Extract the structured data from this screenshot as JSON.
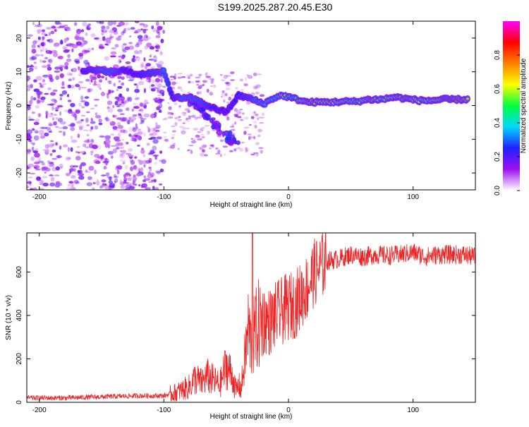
{
  "title": "S199.2025.287.20.45.E30",
  "chart_data": [
    {
      "type": "heatmap",
      "xlabel": "Height of straight line (km)",
      "ylabel": "Frequency (Hz)",
      "xlim": [
        -210,
        150
      ],
      "ylim": [
        -25,
        25
      ],
      "x_ticks": [
        -200,
        -100,
        0,
        100
      ],
      "y_ticks": [
        -20,
        -10,
        0,
        10,
        20
      ],
      "colorbar": {
        "label": "Normalized spectral amplitude",
        "range": [
          0,
          1
        ],
        "ticks": [
          0.0,
          0.2,
          0.4,
          0.6,
          0.8
        ],
        "tick_labels": [
          "0.0",
          "0.2",
          "0.4",
          "0.6",
          "0.8"
        ],
        "colors": [
          "#ffffff",
          "#a010f0",
          "#2020ff",
          "#00d8ff",
          "#00ff40",
          "#ffff00",
          "#ff8000",
          "#ff0000",
          "#ff00ff"
        ]
      },
      "ridge": [
        {
          "x": -165,
          "y": 10.5,
          "a": 0.25
        },
        {
          "x": -150,
          "y": 10.3,
          "a": 0.3
        },
        {
          "x": -140,
          "y": 10.0,
          "a": 0.3
        },
        {
          "x": -130,
          "y": 10.4,
          "a": 0.25
        },
        {
          "x": -122,
          "y": 9.2,
          "a": 0.25
        },
        {
          "x": -100,
          "y": 10.0,
          "a": 0.3
        },
        {
          "x": -93,
          "y": 2.5,
          "a": 0.25
        },
        {
          "x": -85,
          "y": 2.2,
          "a": 0.3
        },
        {
          "x": -75,
          "y": 1.8,
          "a": 0.3
        },
        {
          "x": -68,
          "y": 0.5,
          "a": 0.28
        },
        {
          "x": -60,
          "y": -0.8,
          "a": 0.25
        },
        {
          "x": -50,
          "y": -2.0,
          "a": 0.22
        },
        {
          "x": -40,
          "y": 3.0,
          "a": 0.25
        },
        {
          "x": -30,
          "y": 2.0,
          "a": 0.28
        },
        {
          "x": -20,
          "y": 0.5,
          "a": 0.35
        },
        {
          "x": -10,
          "y": 2.5,
          "a": 0.4
        },
        {
          "x": -5,
          "y": 3.0,
          "a": 0.6
        },
        {
          "x": 5,
          "y": 2.0,
          "a": 0.45
        },
        {
          "x": 15,
          "y": 1.0,
          "a": 0.8
        },
        {
          "x": 25,
          "y": 1.0,
          "a": 0.65
        },
        {
          "x": 35,
          "y": 1.0,
          "a": 0.7
        },
        {
          "x": 45,
          "y": 1.2,
          "a": 0.55
        },
        {
          "x": 55,
          "y": 1.2,
          "a": 0.5
        },
        {
          "x": 65,
          "y": 1.8,
          "a": 0.8
        },
        {
          "x": 75,
          "y": 1.8,
          "a": 0.55
        },
        {
          "x": 85,
          "y": 2.5,
          "a": 0.7
        },
        {
          "x": 95,
          "y": 2.0,
          "a": 0.8
        },
        {
          "x": 105,
          "y": 1.5,
          "a": 0.6
        },
        {
          "x": 115,
          "y": 1.5,
          "a": 0.55
        },
        {
          "x": 125,
          "y": 1.8,
          "a": 0.85
        },
        {
          "x": 135,
          "y": 1.8,
          "a": 0.8
        },
        {
          "x": 145,
          "y": 1.8,
          "a": 0.7
        }
      ]
    },
    {
      "type": "line",
      "xlabel": "Height of straight line (km)",
      "ylabel": "SNR (10 * v/v)",
      "xlim": [
        -210,
        150
      ],
      "ylim": [
        0,
        780
      ],
      "x_ticks": [
        -200,
        -100,
        0,
        100
      ],
      "y_ticks": [
        0,
        200,
        400,
        600
      ],
      "color": "#ee2222",
      "series": [
        {
          "name": "SNR",
          "x": [
            -210,
            -180,
            -150,
            -120,
            -100,
            -90,
            -80,
            -75,
            -70,
            -65,
            -60,
            -55,
            -50,
            -45,
            -42,
            -40,
            -38,
            -35,
            -32,
            -30,
            -28,
            -25,
            -20,
            -15,
            -10,
            -5,
            0,
            5,
            10,
            15,
            20,
            25,
            30,
            40,
            50,
            60,
            70,
            80,
            90,
            100,
            110,
            120,
            130,
            140,
            150
          ],
          "y": [
            20,
            20,
            25,
            30,
            30,
            45,
            70,
            110,
            90,
            120,
            100,
            80,
            170,
            120,
            50,
            80,
            60,
            200,
            350,
            260,
            300,
            350,
            380,
            370,
            400,
            420,
            440,
            450,
            490,
            530,
            590,
            620,
            650,
            660,
            680,
            670,
            680,
            675,
            680,
            690,
            670,
            680,
            680,
            680,
            670
          ]
        }
      ]
    }
  ]
}
